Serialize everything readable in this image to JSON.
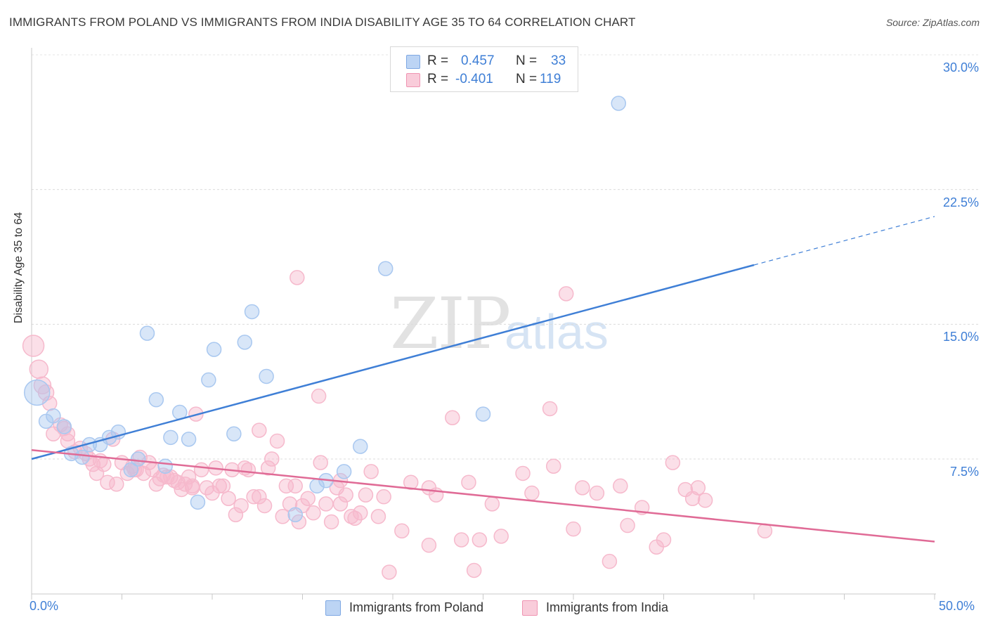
{
  "title": "IMMIGRANTS FROM POLAND VS IMMIGRANTS FROM INDIA DISABILITY AGE 35 TO 64 CORRELATION CHART",
  "source": "Source: ZipAtlas.com",
  "watermark": {
    "zip": "ZIP",
    "atlas": "atlas"
  },
  "stats": [
    {
      "r_label": "R =",
      "r_value": "0.457",
      "n_label": "N =",
      "n_value": "33",
      "color": "#a9c8f0"
    },
    {
      "r_label": "R =",
      "r_value": "-0.401",
      "n_label": "N =",
      "n_value": "119",
      "color": "#f6b9cc"
    }
  ],
  "legend": [
    {
      "label": "Immigrants from Poland",
      "color": "#a9c8f0"
    },
    {
      "label": "Immigrants from India",
      "color": "#f6b9cc"
    }
  ],
  "chart_data": {
    "type": "scatter",
    "title": "IMMIGRANTS FROM POLAND VS IMMIGRANTS FROM INDIA DISABILITY AGE 35 TO 64 CORRELATION CHART",
    "xlabel": "",
    "ylabel": "Disability Age 35 to 64",
    "xlim": [
      0,
      50
    ],
    "ylim": [
      0,
      31
    ],
    "x_tick_labels": [
      "0.0%",
      "50.0%"
    ],
    "y_ticks": [
      7.5,
      15.0,
      22.5,
      30.0
    ],
    "y_tick_labels": [
      "7.5%",
      "15.0%",
      "22.5%",
      "30.0%"
    ],
    "grid": true,
    "legend_position": "bottom-center",
    "series": [
      {
        "name": "Immigrants from Poland",
        "color": "#3f7fd6",
        "fill": "#a9c8f0",
        "trend": {
          "x1": 0,
          "y1": 7.5,
          "x2": 40,
          "y2": 18.3,
          "dash_to_x": 50,
          "dash_to_y": 21.0
        },
        "points": [
          [
            0.3,
            11.2,
            18
          ],
          [
            0.8,
            9.6,
            10
          ],
          [
            1.2,
            9.9,
            10
          ],
          [
            1.8,
            9.3,
            10
          ],
          [
            2.2,
            7.8,
            10
          ],
          [
            2.8,
            7.6,
            10
          ],
          [
            3.2,
            8.3,
            10
          ],
          [
            3.8,
            8.3,
            10
          ],
          [
            4.3,
            8.7,
            10
          ],
          [
            4.8,
            9.0,
            10
          ],
          [
            5.5,
            6.9,
            10
          ],
          [
            5.9,
            7.5,
            10
          ],
          [
            6.4,
            14.5,
            10
          ],
          [
            6.9,
            10.8,
            10
          ],
          [
            7.4,
            7.1,
            10
          ],
          [
            7.7,
            8.7,
            10
          ],
          [
            8.2,
            10.1,
            10
          ],
          [
            8.7,
            8.6,
            10
          ],
          [
            9.2,
            5.1,
            10
          ],
          [
            9.8,
            11.9,
            10
          ],
          [
            10.1,
            13.6,
            10
          ],
          [
            11.2,
            8.9,
            10
          ],
          [
            11.8,
            14.0,
            10
          ],
          [
            12.2,
            15.7,
            10
          ],
          [
            13.0,
            12.1,
            10
          ],
          [
            14.6,
            4.4,
            10
          ],
          [
            15.8,
            6.0,
            10
          ],
          [
            16.3,
            6.3,
            10
          ],
          [
            17.3,
            6.8,
            10
          ],
          [
            18.2,
            8.2,
            10
          ],
          [
            19.6,
            18.1,
            10
          ],
          [
            25.0,
            10.0,
            10
          ],
          [
            32.5,
            27.3,
            10
          ]
        ]
      },
      {
        "name": "Immigrants from India",
        "color": "#e06b96",
        "fill": "#f6b9cc",
        "trend": {
          "x1": 0,
          "y1": 8.0,
          "x2": 50,
          "y2": 2.9
        },
        "points": [
          [
            0.1,
            13.8,
            15
          ],
          [
            0.4,
            12.5,
            13
          ],
          [
            0.6,
            11.6,
            12
          ],
          [
            0.8,
            11.2,
            11
          ],
          [
            1.0,
            10.6,
            10
          ],
          [
            1.2,
            8.9,
            10
          ],
          [
            1.6,
            9.4,
            10
          ],
          [
            1.8,
            9.2,
            10
          ],
          [
            2.0,
            8.5,
            10
          ],
          [
            2.0,
            8.9,
            10
          ],
          [
            2.4,
            7.9,
            10
          ],
          [
            2.7,
            8.1,
            10
          ],
          [
            3.0,
            7.8,
            10
          ],
          [
            3.2,
            7.5,
            10
          ],
          [
            3.4,
            7.2,
            10
          ],
          [
            3.6,
            6.7,
            10
          ],
          [
            3.8,
            7.4,
            10
          ],
          [
            4.0,
            7.2,
            10
          ],
          [
            4.2,
            6.2,
            10
          ],
          [
            4.5,
            8.6,
            10
          ],
          [
            4.7,
            6.1,
            10
          ],
          [
            5.0,
            7.3,
            10
          ],
          [
            5.3,
            6.7,
            10
          ],
          [
            5.6,
            7.1,
            10
          ],
          [
            5.8,
            6.9,
            10
          ],
          [
            6.0,
            7.6,
            10
          ],
          [
            6.2,
            6.7,
            10
          ],
          [
            6.5,
            7.3,
            10
          ],
          [
            6.7,
            6.9,
            10
          ],
          [
            6.9,
            6.1,
            10
          ],
          [
            7.1,
            6.4,
            10
          ],
          [
            7.3,
            6.6,
            10
          ],
          [
            7.5,
            6.5,
            10
          ],
          [
            7.7,
            6.5,
            10
          ],
          [
            7.9,
            6.3,
            10
          ],
          [
            8.1,
            6.2,
            10
          ],
          [
            8.3,
            5.8,
            10
          ],
          [
            8.5,
            6.1,
            10
          ],
          [
            8.7,
            6.5,
            10
          ],
          [
            8.9,
            6.0,
            10
          ],
          [
            9.1,
            10.0,
            10
          ],
          [
            9.4,
            6.9,
            10
          ],
          [
            9.7,
            5.9,
            10
          ],
          [
            10.0,
            5.6,
            10
          ],
          [
            10.2,
            7.0,
            10
          ],
          [
            10.4,
            6.0,
            10
          ],
          [
            10.6,
            6.0,
            10
          ],
          [
            10.9,
            5.3,
            10
          ],
          [
            11.1,
            6.9,
            10
          ],
          [
            11.3,
            4.4,
            10
          ],
          [
            11.6,
            4.9,
            10
          ],
          [
            11.8,
            7.0,
            10
          ],
          [
            12.0,
            6.9,
            10
          ],
          [
            12.3,
            5.4,
            10
          ],
          [
            12.6,
            5.4,
            10
          ],
          [
            12.9,
            4.9,
            10
          ],
          [
            13.1,
            7.0,
            10
          ],
          [
            13.3,
            7.5,
            10
          ],
          [
            13.6,
            8.5,
            10
          ],
          [
            13.9,
            4.3,
            10
          ],
          [
            14.1,
            6.0,
            10
          ],
          [
            14.3,
            5.0,
            10
          ],
          [
            14.6,
            6.0,
            10
          ],
          [
            14.8,
            4.0,
            10
          ],
          [
            15.0,
            4.9,
            10
          ],
          [
            15.3,
            5.3,
            10
          ],
          [
            15.6,
            4.5,
            10
          ],
          [
            16.0,
            7.3,
            10
          ],
          [
            16.3,
            5.0,
            10
          ],
          [
            16.6,
            4.0,
            10
          ],
          [
            16.9,
            5.9,
            10
          ],
          [
            17.1,
            5.0,
            10
          ],
          [
            17.4,
            5.5,
            10
          ],
          [
            17.7,
            4.3,
            10
          ],
          [
            17.9,
            4.2,
            10
          ],
          [
            18.2,
            4.5,
            10
          ],
          [
            18.5,
            5.5,
            10
          ],
          [
            18.8,
            6.8,
            10
          ],
          [
            19.2,
            4.3,
            10
          ],
          [
            19.5,
            5.4,
            10
          ],
          [
            19.8,
            1.2,
            10
          ],
          [
            20.5,
            3.5,
            10
          ],
          [
            21.0,
            6.2,
            10
          ],
          [
            22.0,
            2.7,
            10
          ],
          [
            22.0,
            5.9,
            10
          ],
          [
            22.4,
            5.5,
            10
          ],
          [
            23.3,
            9.8,
            10
          ],
          [
            23.8,
            3.0,
            10
          ],
          [
            24.2,
            6.2,
            10
          ],
          [
            24.5,
            1.3,
            10
          ],
          [
            24.8,
            3.0,
            10
          ],
          [
            25.5,
            5.0,
            10
          ],
          [
            26.0,
            3.2,
            10
          ],
          [
            27.2,
            6.7,
            10
          ],
          [
            27.7,
            5.6,
            10
          ],
          [
            28.7,
            10.3,
            10
          ],
          [
            28.9,
            7.1,
            10
          ],
          [
            29.6,
            16.7,
            10
          ],
          [
            30.0,
            3.6,
            10
          ],
          [
            30.5,
            5.9,
            10
          ],
          [
            31.3,
            5.6,
            10
          ],
          [
            32.0,
            1.8,
            10
          ],
          [
            32.6,
            6.0,
            10
          ],
          [
            33.0,
            3.8,
            10
          ],
          [
            33.8,
            4.8,
            10
          ],
          [
            34.6,
            2.6,
            10
          ],
          [
            35.0,
            3.0,
            10
          ],
          [
            35.5,
            7.3,
            10
          ],
          [
            36.2,
            5.8,
            10
          ],
          [
            36.6,
            5.3,
            10
          ],
          [
            36.9,
            5.9,
            10
          ],
          [
            37.3,
            5.2,
            10
          ],
          [
            40.6,
            3.5,
            10
          ],
          [
            14.7,
            17.6,
            10
          ],
          [
            15.9,
            11.0,
            10
          ],
          [
            17.1,
            6.3,
            10
          ],
          [
            12.6,
            9.1,
            10
          ],
          [
            8.9,
            5.9,
            10
          ],
          [
            5.7,
            6.9,
            10
          ]
        ]
      }
    ]
  }
}
